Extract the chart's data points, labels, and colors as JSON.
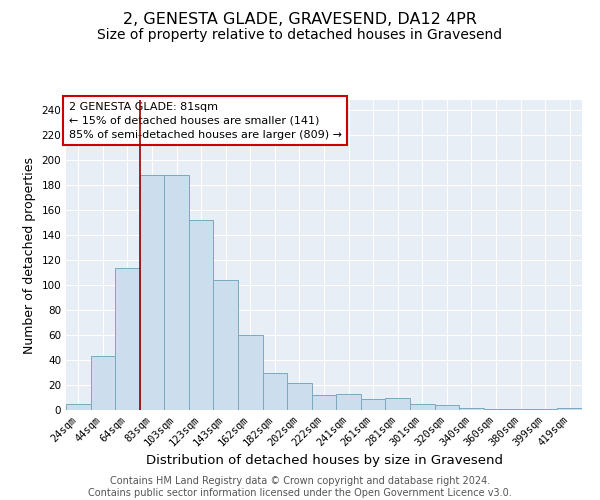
{
  "title": "2, GENESTA GLADE, GRAVESEND, DA12 4PR",
  "subtitle": "Size of property relative to detached houses in Gravesend",
  "xlabel": "Distribution of detached houses by size in Gravesend",
  "ylabel": "Number of detached properties",
  "bar_labels": [
    "24sqm",
    "44sqm",
    "64sqm",
    "83sqm",
    "103sqm",
    "123sqm",
    "143sqm",
    "162sqm",
    "182sqm",
    "202sqm",
    "222sqm",
    "241sqm",
    "261sqm",
    "281sqm",
    "301sqm",
    "320sqm",
    "340sqm",
    "360sqm",
    "380sqm",
    "399sqm",
    "419sqm"
  ],
  "bar_heights": [
    5,
    43,
    114,
    188,
    188,
    152,
    104,
    60,
    30,
    22,
    12,
    13,
    9,
    10,
    5,
    4,
    2,
    1,
    1,
    1,
    2
  ],
  "bar_color": "#ccdded",
  "bar_edge_color": "#7aaabf",
  "annotation_box_text": "2 GENESTA GLADE: 81sqm\n← 15% of detached houses are smaller (141)\n85% of semi-detached houses are larger (809) →",
  "annotation_box_color": "white",
  "annotation_box_edge_color": "#cc0000",
  "vline_color": "#990000",
  "vline_x_index": 3,
  "ylim": [
    0,
    248
  ],
  "yticks": [
    0,
    20,
    40,
    60,
    80,
    100,
    120,
    140,
    160,
    180,
    200,
    220,
    240
  ],
  "background_color": "#e8eef5",
  "footer_text": "Contains HM Land Registry data © Crown copyright and database right 2024.\nContains public sector information licensed under the Open Government Licence v3.0.",
  "title_fontsize": 11.5,
  "subtitle_fontsize": 10,
  "xlabel_fontsize": 9.5,
  "ylabel_fontsize": 9,
  "tick_fontsize": 7.5,
  "footer_fontsize": 7,
  "annot_fontsize": 8
}
